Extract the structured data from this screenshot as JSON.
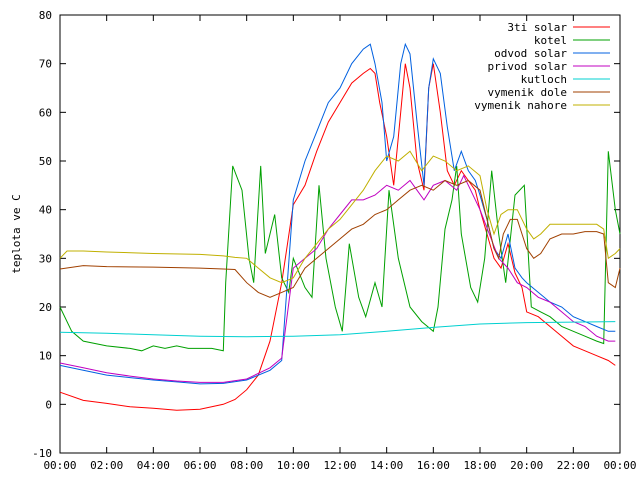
{
  "chart_data": {
    "type": "line",
    "title": "",
    "xlabel": "",
    "ylabel": "teplota ve C",
    "xlim": [
      0,
      24
    ],
    "ylim": [
      -10,
      80
    ],
    "x_ticks": [
      "00:00",
      "02:00",
      "04:00",
      "06:00",
      "08:00",
      "10:00",
      "12:00",
      "14:00",
      "16:00",
      "18:00",
      "20:00",
      "22:00",
      "00:00"
    ],
    "y_ticks": [
      "-10",
      "0",
      "10",
      "20",
      "30",
      "40",
      "50",
      "60",
      "70",
      "80"
    ],
    "legend_position": "top-right",
    "grid": false,
    "series": [
      {
        "name": "3ti solar",
        "color": "#ff0000",
        "points": [
          [
            0,
            2.5
          ],
          [
            1,
            0.8
          ],
          [
            2,
            0.2
          ],
          [
            3,
            -0.5
          ],
          [
            4,
            -0.8
          ],
          [
            5,
            -1.2
          ],
          [
            6,
            -1
          ],
          [
            6.5,
            -0.5
          ],
          [
            7,
            0
          ],
          [
            7.5,
            1
          ],
          [
            8,
            3
          ],
          [
            8.5,
            6
          ],
          [
            9,
            13
          ],
          [
            9.5,
            25
          ],
          [
            10,
            41
          ],
          [
            10.5,
            45
          ],
          [
            11,
            52
          ],
          [
            11.5,
            58
          ],
          [
            12,
            62
          ],
          [
            12.5,
            66
          ],
          [
            13,
            68
          ],
          [
            13.3,
            69
          ],
          [
            13.5,
            68
          ],
          [
            13.7,
            62
          ],
          [
            14,
            55
          ],
          [
            14.3,
            45
          ],
          [
            14.6,
            60
          ],
          [
            14.8,
            70
          ],
          [
            15,
            65
          ],
          [
            15.3,
            50
          ],
          [
            15.6,
            44
          ],
          [
            15.8,
            65
          ],
          [
            16,
            70
          ],
          [
            16.3,
            60
          ],
          [
            16.6,
            48
          ],
          [
            16.9,
            45
          ],
          [
            17.2,
            48
          ],
          [
            17.5,
            46
          ],
          [
            17.8,
            44
          ],
          [
            18,
            40
          ],
          [
            18.3,
            35
          ],
          [
            18.6,
            30
          ],
          [
            18.9,
            28
          ],
          [
            19.2,
            33
          ],
          [
            19.5,
            27
          ],
          [
            19.8,
            24
          ],
          [
            20,
            19
          ],
          [
            20.5,
            18
          ],
          [
            21,
            16
          ],
          [
            21.5,
            14
          ],
          [
            22,
            12
          ],
          [
            22.5,
            11
          ],
          [
            23,
            10
          ],
          [
            23.5,
            9
          ],
          [
            23.8,
            8
          ]
        ]
      },
      {
        "name": "kotel",
        "color": "#00a000",
        "points": [
          [
            0,
            20
          ],
          [
            0.5,
            15
          ],
          [
            1,
            13
          ],
          [
            2,
            12
          ],
          [
            3,
            11.5
          ],
          [
            3.5,
            11
          ],
          [
            4,
            12
          ],
          [
            4.5,
            11.5
          ],
          [
            5,
            12
          ],
          [
            5.5,
            11.5
          ],
          [
            6,
            11.5
          ],
          [
            6.5,
            11.5
          ],
          [
            7,
            11
          ],
          [
            7.1,
            25
          ],
          [
            7.4,
            49
          ],
          [
            7.8,
            44
          ],
          [
            8.1,
            30
          ],
          [
            8.3,
            25
          ],
          [
            8.6,
            49
          ],
          [
            8.8,
            31
          ],
          [
            9.2,
            39
          ],
          [
            9.5,
            26
          ],
          [
            9.8,
            23
          ],
          [
            10,
            30
          ],
          [
            10.5,
            24
          ],
          [
            10.8,
            22
          ],
          [
            11.1,
            45
          ],
          [
            11.4,
            30
          ],
          [
            11.8,
            20
          ],
          [
            12.1,
            15
          ],
          [
            12.4,
            33
          ],
          [
            12.8,
            22
          ],
          [
            13.1,
            18
          ],
          [
            13.5,
            25
          ],
          [
            13.8,
            20
          ],
          [
            14.1,
            44
          ],
          [
            14.5,
            30
          ],
          [
            15,
            20
          ],
          [
            15.5,
            17
          ],
          [
            16,
            15
          ],
          [
            16.2,
            20
          ],
          [
            16.5,
            36
          ],
          [
            16.8,
            42
          ],
          [
            17,
            49
          ],
          [
            17.2,
            35
          ],
          [
            17.6,
            24
          ],
          [
            17.9,
            21
          ],
          [
            18.2,
            30
          ],
          [
            18.5,
            48
          ],
          [
            18.8,
            35
          ],
          [
            19.1,
            25
          ],
          [
            19.5,
            43
          ],
          [
            19.9,
            45
          ],
          [
            20.2,
            20
          ],
          [
            20.6,
            19
          ],
          [
            21,
            18
          ],
          [
            21.5,
            16
          ],
          [
            22,
            15
          ],
          [
            22.5,
            14
          ],
          [
            23,
            13
          ],
          [
            23.3,
            12.5
          ],
          [
            23.5,
            52
          ],
          [
            23.8,
            40
          ],
          [
            24,
            35
          ]
        ]
      },
      {
        "name": "odvod solar",
        "color": "#0060e0",
        "points": [
          [
            0,
            8
          ],
          [
            1,
            7
          ],
          [
            2,
            6
          ],
          [
            3,
            5.5
          ],
          [
            4,
            5
          ],
          [
            5,
            4.6
          ],
          [
            6,
            4.2
          ],
          [
            7,
            4.3
          ],
          [
            8,
            5
          ],
          [
            9,
            7
          ],
          [
            9.5,
            9
          ],
          [
            10,
            42
          ],
          [
            10.5,
            50
          ],
          [
            11,
            56
          ],
          [
            11.5,
            62
          ],
          [
            12,
            65
          ],
          [
            12.5,
            70
          ],
          [
            13,
            73
          ],
          [
            13.3,
            74
          ],
          [
            13.5,
            70
          ],
          [
            13.8,
            62
          ],
          [
            14,
            50
          ],
          [
            14.3,
            55
          ],
          [
            14.6,
            70
          ],
          [
            14.8,
            74
          ],
          [
            15,
            72
          ],
          [
            15.3,
            58
          ],
          [
            15.6,
            45
          ],
          [
            15.8,
            65
          ],
          [
            16,
            71
          ],
          [
            16.3,
            68
          ],
          [
            16.6,
            57
          ],
          [
            16.9,
            48
          ],
          [
            17.2,
            52
          ],
          [
            17.5,
            48
          ],
          [
            17.8,
            46
          ],
          [
            18,
            43
          ],
          [
            18.3,
            38
          ],
          [
            18.6,
            32
          ],
          [
            18.9,
            30
          ],
          [
            19.2,
            35
          ],
          [
            19.5,
            28
          ],
          [
            19.8,
            26
          ],
          [
            20,
            25
          ],
          [
            20.5,
            23
          ],
          [
            21,
            21
          ],
          [
            21.5,
            20
          ],
          [
            22,
            18
          ],
          [
            22.5,
            17
          ],
          [
            23,
            16
          ],
          [
            23.5,
            15
          ],
          [
            23.8,
            15
          ]
        ]
      },
      {
        "name": "privod solar",
        "color": "#c000c0",
        "points": [
          [
            0,
            8.5
          ],
          [
            1,
            7.5
          ],
          [
            2,
            6.5
          ],
          [
            3,
            5.8
          ],
          [
            4,
            5.2
          ],
          [
            5,
            4.8
          ],
          [
            6,
            4.5
          ],
          [
            7,
            4.5
          ],
          [
            8,
            5.2
          ],
          [
            9,
            7.5
          ],
          [
            9.5,
            9.5
          ],
          [
            10,
            28
          ],
          [
            10.5,
            30
          ],
          [
            11,
            32
          ],
          [
            11.5,
            36
          ],
          [
            12,
            39
          ],
          [
            12.5,
            42
          ],
          [
            13,
            42
          ],
          [
            13.5,
            43
          ],
          [
            14,
            45
          ],
          [
            14.5,
            44
          ],
          [
            15,
            46
          ],
          [
            15.3,
            44
          ],
          [
            15.6,
            42
          ],
          [
            16,
            45
          ],
          [
            16.5,
            46
          ],
          [
            17,
            44
          ],
          [
            17.3,
            47
          ],
          [
            17.6,
            44
          ],
          [
            18,
            40
          ],
          [
            18.4,
            35
          ],
          [
            18.8,
            30
          ],
          [
            19.2,
            28
          ],
          [
            19.6,
            25
          ],
          [
            20,
            24
          ],
          [
            20.5,
            22
          ],
          [
            21,
            21
          ],
          [
            21.5,
            19
          ],
          [
            22,
            17
          ],
          [
            22.5,
            16
          ],
          [
            23,
            14
          ],
          [
            23.5,
            13
          ],
          [
            23.8,
            13
          ]
        ]
      },
      {
        "name": "kutloch",
        "color": "#00d0d0",
        "points": [
          [
            0,
            14.8
          ],
          [
            2,
            14.6
          ],
          [
            4,
            14.3
          ],
          [
            6,
            14
          ],
          [
            8,
            13.9
          ],
          [
            10,
            14
          ],
          [
            12,
            14.3
          ],
          [
            14,
            15
          ],
          [
            16,
            15.8
          ],
          [
            18,
            16.5
          ],
          [
            20,
            16.8
          ],
          [
            22,
            16.9
          ],
          [
            23.8,
            17
          ]
        ]
      },
      {
        "name": "vymenik dole",
        "color": "#a04000",
        "points": [
          [
            0,
            27.8
          ],
          [
            1,
            28.5
          ],
          [
            2,
            28.3
          ],
          [
            4,
            28.2
          ],
          [
            6,
            28
          ],
          [
            7,
            27.8
          ],
          [
            7.5,
            27.7
          ],
          [
            8,
            25
          ],
          [
            8.5,
            23
          ],
          [
            9,
            22
          ],
          [
            9.5,
            23
          ],
          [
            10,
            24
          ],
          [
            10.5,
            28
          ],
          [
            11,
            30
          ],
          [
            11.5,
            32
          ],
          [
            12,
            34
          ],
          [
            12.5,
            36
          ],
          [
            13,
            37
          ],
          [
            13.5,
            39
          ],
          [
            14,
            40
          ],
          [
            14.5,
            42
          ],
          [
            15,
            44
          ],
          [
            15.5,
            45
          ],
          [
            16,
            44
          ],
          [
            16.5,
            46
          ],
          [
            17,
            45
          ],
          [
            17.5,
            46
          ],
          [
            18,
            44
          ],
          [
            18.3,
            38
          ],
          [
            18.6,
            32
          ],
          [
            18.8,
            30
          ],
          [
            19,
            35
          ],
          [
            19.3,
            38
          ],
          [
            19.6,
            38
          ],
          [
            20,
            32
          ],
          [
            20.3,
            30
          ],
          [
            20.6,
            31
          ],
          [
            21,
            34
          ],
          [
            21.5,
            35
          ],
          [
            22,
            35
          ],
          [
            22.5,
            35.5
          ],
          [
            23,
            35.5
          ],
          [
            23.3,
            35
          ],
          [
            23.5,
            25
          ],
          [
            23.8,
            24
          ],
          [
            24,
            28
          ]
        ]
      },
      {
        "name": "vymenik nahore",
        "color": "#c0b000",
        "points": [
          [
            0,
            30
          ],
          [
            0.3,
            31.5
          ],
          [
            1,
            31.5
          ],
          [
            2,
            31.3
          ],
          [
            4,
            31
          ],
          [
            6,
            30.8
          ],
          [
            7,
            30.5
          ],
          [
            7.5,
            30.2
          ],
          [
            8,
            30
          ],
          [
            8.5,
            28
          ],
          [
            9,
            26
          ],
          [
            9.5,
            25
          ],
          [
            10,
            26
          ],
          [
            10.5,
            30
          ],
          [
            11,
            33
          ],
          [
            11.5,
            36
          ],
          [
            12,
            38
          ],
          [
            12.5,
            41
          ],
          [
            13,
            44
          ],
          [
            13.5,
            48
          ],
          [
            14,
            51
          ],
          [
            14.5,
            50
          ],
          [
            15,
            52
          ],
          [
            15.5,
            48
          ],
          [
            16,
            51
          ],
          [
            16.5,
            50
          ],
          [
            17,
            48
          ],
          [
            17.5,
            49
          ],
          [
            18,
            47
          ],
          [
            18.3,
            40
          ],
          [
            18.6,
            35
          ],
          [
            18.9,
            39
          ],
          [
            19.2,
            40
          ],
          [
            19.6,
            40
          ],
          [
            20,
            36
          ],
          [
            20.3,
            34
          ],
          [
            20.6,
            35
          ],
          [
            21,
            37
          ],
          [
            21.5,
            37
          ],
          [
            22,
            37
          ],
          [
            22.5,
            37
          ],
          [
            23,
            37
          ],
          [
            23.3,
            36
          ],
          [
            23.5,
            30
          ],
          [
            23.8,
            31
          ],
          [
            24,
            32
          ]
        ]
      }
    ]
  }
}
